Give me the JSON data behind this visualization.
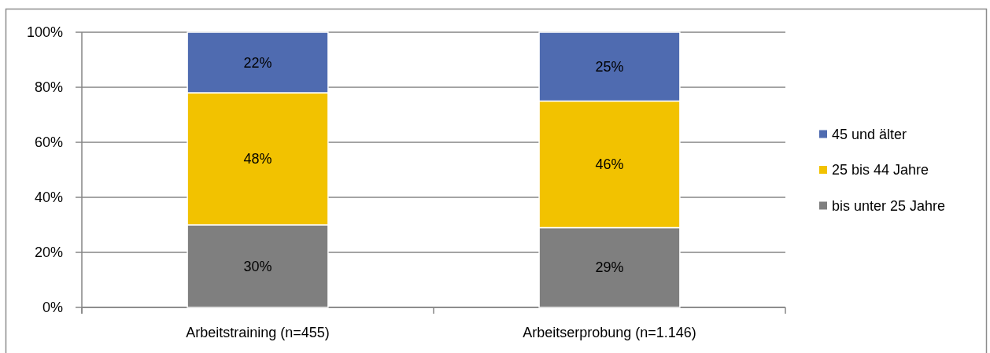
{
  "chart_data": {
    "type": "bar",
    "stacked": true,
    "categories": [
      "Arbeitstraining (n=455)",
      "Arbeitserprobung (n=1.146)"
    ],
    "series": [
      {
        "name": "bis unter 25 Jahre",
        "color": "#7f7f7f",
        "values": [
          30,
          29
        ]
      },
      {
        "name": "25 bis 44 Jahre",
        "color": "#f2c200",
        "values": [
          48,
          46
        ]
      },
      {
        "name": "45 und älter",
        "color": "#4f6bb0",
        "values": [
          22,
          25
        ]
      }
    ],
    "ylim": [
      0,
      100
    ],
    "yticks": [
      {
        "value": 0,
        "label": "0%"
      },
      {
        "value": 20,
        "label": "20%"
      },
      {
        "value": 40,
        "label": "40%"
      },
      {
        "value": 60,
        "label": "60%"
      },
      {
        "value": 80,
        "label": "80%"
      },
      {
        "value": 100,
        "label": "100%"
      }
    ],
    "value_labels": [
      [
        "30%",
        "29%"
      ],
      [
        "48%",
        "46%"
      ],
      [
        "22%",
        "25%"
      ]
    ],
    "grid": "y",
    "legend": "right"
  }
}
